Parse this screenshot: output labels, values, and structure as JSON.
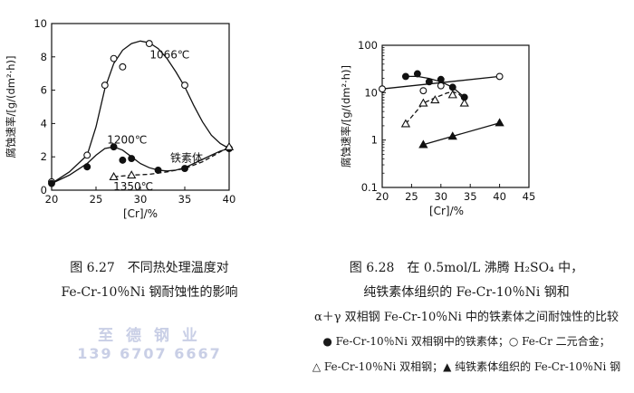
{
  "chart_data": [
    {
      "type": "line",
      "title": "",
      "xlabel": "[Cr]/%",
      "ylabel": "腐蚀速率/[g/(dm²·h)]",
      "xlim": [
        20,
        40
      ],
      "ylim": [
        0,
        10
      ],
      "xticks": [
        20,
        25,
        30,
        35,
        40
      ],
      "yticks": [
        0,
        2,
        4,
        6,
        8,
        10
      ],
      "grid": false,
      "series": [
        {
          "name": "1066℃",
          "marker": "open-circle",
          "line": "solid",
          "points": [
            [
              20,
              0.5
            ],
            [
              24,
              2.1
            ],
            [
              26,
              6.3
            ],
            [
              27,
              7.9
            ],
            [
              28,
              7.4
            ],
            [
              31,
              8.8
            ],
            [
              35,
              6.3
            ],
            [
              40,
              2.5
            ]
          ],
          "curve": [
            [
              20,
              0.4
            ],
            [
              22,
              1.1
            ],
            [
              24,
              2.1
            ],
            [
              25,
              3.8
            ],
            [
              26,
              6.1
            ],
            [
              27,
              7.6
            ],
            [
              28,
              8.4
            ],
            [
              29,
              8.8
            ],
            [
              30,
              8.95
            ],
            [
              31,
              8.85
            ],
            [
              32,
              8.5
            ],
            [
              33,
              7.9
            ],
            [
              34,
              7.1
            ],
            [
              35,
              6.2
            ],
            [
              36,
              5.1
            ],
            [
              37,
              4.1
            ],
            [
              38,
              3.3
            ],
            [
              39,
              2.8
            ],
            [
              40,
              2.5
            ]
          ]
        },
        {
          "name": "1200℃",
          "marker": "filled-circle",
          "line": "solid",
          "points": [
            [
              20,
              0.4
            ],
            [
              24,
              1.4
            ],
            [
              27,
              2.6
            ],
            [
              28,
              1.8
            ],
            [
              29,
              1.9
            ],
            [
              32,
              1.2
            ],
            [
              35,
              1.3
            ],
            [
              40,
              2.5
            ]
          ],
          "curve": [
            [
              20,
              0.4
            ],
            [
              22,
              0.9
            ],
            [
              24,
              1.6
            ],
            [
              25,
              2.1
            ],
            [
              26,
              2.5
            ],
            [
              27,
              2.6
            ],
            [
              28,
              2.4
            ],
            [
              29,
              2.0
            ],
            [
              30,
              1.6
            ],
            [
              31,
              1.35
            ],
            [
              32,
              1.2
            ],
            [
              33,
              1.15
            ],
            [
              34,
              1.2
            ],
            [
              35,
              1.35
            ],
            [
              36,
              1.6
            ],
            [
              37,
              1.85
            ],
            [
              38,
              2.1
            ],
            [
              39,
              2.35
            ],
            [
              40,
              2.5
            ]
          ]
        },
        {
          "name": "1350℃",
          "marker": "open-triangle",
          "line": "dashed",
          "points": [
            [
              27,
              0.8
            ],
            [
              29,
              0.9
            ],
            [
              40,
              2.6
            ]
          ],
          "curve": [
            [
              27,
              0.8
            ],
            [
              29,
              0.9
            ],
            [
              31,
              0.95
            ],
            [
              33,
              1.1
            ],
            [
              35,
              1.3
            ],
            [
              37,
              1.7
            ],
            [
              40,
              2.6
            ]
          ]
        }
      ],
      "annotations": [
        {
          "text": "1066℃",
          "x": 33.3,
          "y": 7.9
        },
        {
          "text": "1200℃",
          "x": 28.5,
          "y": 2.8
        },
        {
          "text": "1350℃",
          "x": 29.2,
          "y": 0.0
        },
        {
          "text": "铁素体",
          "x": 35.2,
          "y": 1.7
        }
      ]
    },
    {
      "type": "scatter",
      "title": "",
      "xlabel": "[Cr]/%",
      "ylabel": "腐蚀速率/[g/(dm²·h)]",
      "xlim": [
        20,
        45
      ],
      "ylim": [
        0.1,
        100
      ],
      "yscale": "log",
      "xticks": [
        20,
        25,
        30,
        35,
        40,
        45
      ],
      "yticks": [
        0.1,
        1,
        10,
        100
      ],
      "ytick_labels": [
        "0.1",
        "1",
        "10",
        "100"
      ],
      "grid": false,
      "series": [
        {
          "name": "Fe-Cr-10%Ni 双相钢中的铁素体",
          "marker": "filled-circle",
          "line": "solid",
          "points": [
            [
              24,
              22
            ],
            [
              26,
              25
            ],
            [
              28,
              17
            ],
            [
              30,
              19
            ],
            [
              32,
              13
            ],
            [
              34,
              8
            ]
          ],
          "curve": [
            [
              24,
              22
            ],
            [
              26,
              22
            ],
            [
              28,
              20
            ],
            [
              30,
              17
            ],
            [
              32,
              13
            ],
            [
              34,
              8
            ]
          ]
        },
        {
          "name": "Fe-Cr 二元合金",
          "marker": "open-circle",
          "line": "solid",
          "points": [
            [
              20,
              12
            ],
            [
              27,
              11
            ],
            [
              30,
              14
            ],
            [
              40,
              22
            ]
          ],
          "curve": [
            [
              20,
              12
            ],
            [
              40,
              22
            ]
          ]
        },
        {
          "name": "Fe-Cr-10%Ni 双相钢",
          "marker": "open-triangle",
          "line": "dashed",
          "points": [
            [
              24,
              2.2
            ],
            [
              27,
              6
            ],
            [
              29,
              7
            ],
            [
              32,
              9
            ],
            [
              34,
              6
            ]
          ],
          "curve": [
            [
              24,
              2.2
            ],
            [
              27,
              6
            ],
            [
              29,
              7.8
            ],
            [
              31,
              9.8
            ],
            [
              32,
              10.5
            ],
            [
              33,
              9.5
            ],
            [
              34,
              7
            ]
          ]
        },
        {
          "name": "纯铁素体组织的 Fe-Cr-10%Ni 钢",
          "marker": "filled-triangle",
          "line": "solid",
          "points": [
            [
              27,
              0.8
            ],
            [
              32,
              1.2
            ],
            [
              40,
              2.3
            ]
          ],
          "curve": [
            [
              27,
              0.8
            ],
            [
              40,
              2.3
            ]
          ]
        }
      ]
    }
  ],
  "captions": {
    "fig627": {
      "line1": "图 6.27　不同热处理温度对",
      "line2": "Fe-Cr-10％Ni 钢耐蚀性的影响"
    },
    "fig628": {
      "line1": "图 6.28　在 0.5mol/L 沸腾 H₂SO₄ 中，",
      "line2": "纯铁素体组织的 Fe-Cr-10％Ni 钢和",
      "line3": "α＋γ 双相钢 Fe-Cr-10％Ni 中的铁素体之间耐蚀性的比较",
      "line4": "● Fe-Cr-10％Ni 双相钢中的铁素体；○ Fe-Cr 二元合金；",
      "line5": "△ Fe-Cr-10％Ni 双相钢；▲ 纯铁素体组织的 Fe-Cr-10％Ni 钢"
    }
  },
  "watermark": {
    "line1": "至 德 钢 业",
    "line2": "139 6707 6667"
  }
}
